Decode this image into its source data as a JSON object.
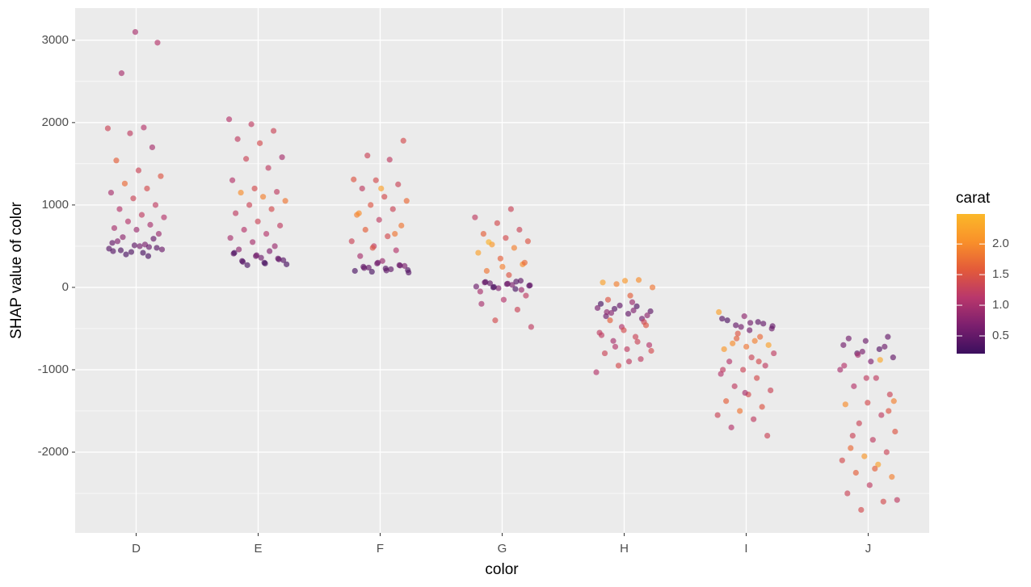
{
  "chart_data": {
    "type": "jitter-scatter",
    "x_label": "color",
    "y_label": "SHAP value of color",
    "categories": [
      "D",
      "E",
      "F",
      "G",
      "H",
      "I",
      "J"
    ],
    "ylim": [
      -2980,
      3390
    ],
    "yticks": [
      -2000,
      -1000,
      0,
      1000,
      2000,
      3000
    ],
    "minor_yticks": [
      -2500,
      -1500,
      -500,
      500,
      1500,
      2500
    ],
    "grid": true,
    "legend_title": "carat",
    "climits": [
      0.21,
      2.49
    ],
    "cticks": [
      0.5,
      {
        "value": 1,
        "label": "1.0"
      },
      1.5,
      {
        "value": 2,
        "label": "2.0"
      }
    ],
    "colorscale": [
      "#3b0f5e",
      "#7b1f6e",
      "#b8376c",
      "#e35a3a",
      "#f9902a",
      "#fbb829"
    ],
    "groups": [
      {
        "values": [
          420,
          450,
          480,
          510,
          540,
          380,
          400,
          460,
          500,
          560,
          590,
          430,
          470,
          520,
          610,
          650,
          700,
          720,
          760,
          800,
          850,
          880,
          950,
          1000,
          1080,
          1150,
          1200,
          1260,
          1350,
          1420,
          1540,
          1700,
          1870,
          1930,
          1940,
          2600,
          2970,
          3100,
          440,
          490
        ],
        "carat": [
          0.3,
          0.35,
          0.4,
          0.45,
          0.5,
          0.3,
          0.32,
          0.55,
          0.6,
          0.7,
          0.5,
          0.35,
          0.4,
          0.65,
          0.8,
          0.9,
          0.9,
          1.0,
          1.0,
          1.1,
          1.1,
          1.2,
          1.1,
          1.2,
          1.3,
          1.0,
          1.4,
          1.7,
          1.5,
          1.3,
          1.6,
          1.0,
          1.2,
          1.3,
          1.1,
          1.0,
          1.1,
          1.0,
          0.4,
          0.5
        ]
      },
      {
        "values": [
          280,
          300,
          320,
          350,
          380,
          410,
          440,
          270,
          330,
          360,
          460,
          500,
          550,
          600,
          650,
          700,
          750,
          800,
          900,
          950,
          1000,
          1050,
          1100,
          1150,
          1160,
          1200,
          1300,
          1450,
          1560,
          1580,
          1750,
          1800,
          1900,
          1980,
          2040,
          290,
          310,
          340,
          390,
          420
        ],
        "carat": [
          0.3,
          0.35,
          0.4,
          0.5,
          0.6,
          0.45,
          0.7,
          0.3,
          0.4,
          0.55,
          0.8,
          0.9,
          1.0,
          1.0,
          1.1,
          1.1,
          1.2,
          1.3,
          1.2,
          1.4,
          1.3,
          1.8,
          1.9,
          2.0,
          1.2,
          1.4,
          1.1,
          1.2,
          1.3,
          1.0,
          1.4,
          1.2,
          1.3,
          1.2,
          1.1,
          0.3,
          0.4,
          0.5,
          0.6,
          0.35
        ]
      },
      {
        "values": [
          190,
          210,
          230,
          250,
          270,
          290,
          200,
          220,
          240,
          260,
          320,
          380,
          450,
          500,
          560,
          620,
          700,
          750,
          820,
          880,
          950,
          1000,
          1050,
          1100,
          1200,
          1250,
          1300,
          1310,
          1550,
          1600,
          1780,
          1200,
          900,
          650,
          480,
          180,
          205,
          235,
          265,
          300
        ],
        "carat": [
          0.3,
          0.35,
          0.4,
          0.5,
          0.55,
          0.6,
          0.32,
          0.45,
          0.5,
          0.65,
          0.9,
          1.0,
          1.1,
          1.2,
          1.3,
          1.4,
          1.6,
          1.8,
          1.2,
          1.9,
          1.3,
          1.5,
          1.7,
          1.4,
          1.2,
          1.3,
          1.4,
          1.5,
          1.2,
          1.3,
          1.4,
          2.2,
          2.0,
          1.8,
          1.5,
          0.4,
          0.45,
          0.5,
          0.55,
          0.6
        ]
      },
      {
        "values": [
          -20,
          0,
          20,
          40,
          60,
          80,
          -10,
          10,
          30,
          50,
          -100,
          -150,
          -200,
          -270,
          -400,
          -480,
          150,
          200,
          280,
          350,
          420,
          480,
          520,
          560,
          600,
          650,
          700,
          780,
          850,
          950,
          550,
          300,
          250,
          -50,
          70,
          5,
          25,
          45,
          65,
          -30
        ],
        "carat": [
          0.3,
          0.35,
          0.4,
          0.5,
          0.6,
          0.45,
          0.7,
          0.55,
          0.65,
          0.5,
          1.2,
          1.1,
          1.0,
          1.3,
          1.4,
          1.2,
          1.5,
          1.8,
          2.0,
          1.6,
          2.2,
          1.9,
          2.1,
          1.5,
          1.4,
          1.6,
          1.3,
          1.4,
          1.2,
          1.3,
          2.4,
          1.7,
          1.9,
          1.0,
          0.4,
          0.35,
          0.5,
          0.6,
          0.45,
          0.9
        ]
      },
      {
        "values": [
          -200,
          -230,
          -260,
          -290,
          -320,
          -350,
          -380,
          -220,
          -250,
          -280,
          -310,
          -340,
          80,
          60,
          90,
          40,
          0,
          -100,
          -150,
          -420,
          -480,
          -550,
          -600,
          -650,
          -700,
          -750,
          -800,
          -870,
          -950,
          -1030,
          -180,
          -400,
          -460,
          -520,
          -580,
          -660,
          -720,
          -770,
          -900,
          -300
        ],
        "carat": [
          0.3,
          0.35,
          0.4,
          0.45,
          0.5,
          0.55,
          0.6,
          0.5,
          0.65,
          0.7,
          0.75,
          0.8,
          2.1,
          2.2,
          2.0,
          1.9,
          1.8,
          1.6,
          1.5,
          1.3,
          1.1,
          1.2,
          1.3,
          1.0,
          1.1,
          1.2,
          1.3,
          1.2,
          1.4,
          1.1,
          0.9,
          1.6,
          1.5,
          1.4,
          1.2,
          1.3,
          1.1,
          1.4,
          1.2,
          0.8
        ]
      },
      {
        "values": [
          -350,
          -380,
          -420,
          -460,
          -500,
          -520,
          -400,
          -440,
          -480,
          -300,
          -650,
          -680,
          -700,
          -720,
          -750,
          -600,
          -560,
          -800,
          -850,
          -900,
          -950,
          -1000,
          -1050,
          -1100,
          -1200,
          -1250,
          -1300,
          -1380,
          -1450,
          -1500,
          -1550,
          -1600,
          -1700,
          -1800,
          -1280,
          -1000,
          -900,
          -620,
          -470,
          -430
        ],
        "carat": [
          0.8,
          0.4,
          0.45,
          0.5,
          0.55,
          0.6,
          0.35,
          0.5,
          0.6,
          2.2,
          1.9,
          2.0,
          2.2,
          1.8,
          2.1,
          1.7,
          1.5,
          1.2,
          1.3,
          1.1,
          1.2,
          1.3,
          1.1,
          1.4,
          1.2,
          1.3,
          1.4,
          1.6,
          1.5,
          1.8,
          1.3,
          1.2,
          1.1,
          1.3,
          1.0,
          1.2,
          1.4,
          1.6,
          0.5,
          0.6
        ]
      },
      {
        "values": [
          -600,
          -650,
          -700,
          -750,
          -800,
          -850,
          -900,
          -620,
          -720,
          -780,
          -1000,
          -1100,
          -1200,
          -1300,
          -1400,
          -1420,
          -1550,
          -1650,
          -1750,
          -1850,
          -1950,
          -2000,
          -2050,
          -2100,
          -2150,
          -2250,
          -2300,
          -2400,
          -2500,
          -2600,
          -2700,
          -2580,
          -2200,
          -1800,
          -1500,
          -1100,
          -950,
          -880,
          -820,
          -1380
        ],
        "carat": [
          0.5,
          0.55,
          0.6,
          0.4,
          0.45,
          0.5,
          0.7,
          0.6,
          0.55,
          0.65,
          1.0,
          1.2,
          1.1,
          1.3,
          1.4,
          2.0,
          1.2,
          1.3,
          1.5,
          1.2,
          1.7,
          1.3,
          2.1,
          1.4,
          2.2,
          1.6,
          1.9,
          1.2,
          1.3,
          1.4,
          1.4,
          1.2,
          1.6,
          1.3,
          1.5,
          1.2,
          1.1,
          2.3,
          1.0,
          1.9
        ]
      }
    ]
  }
}
